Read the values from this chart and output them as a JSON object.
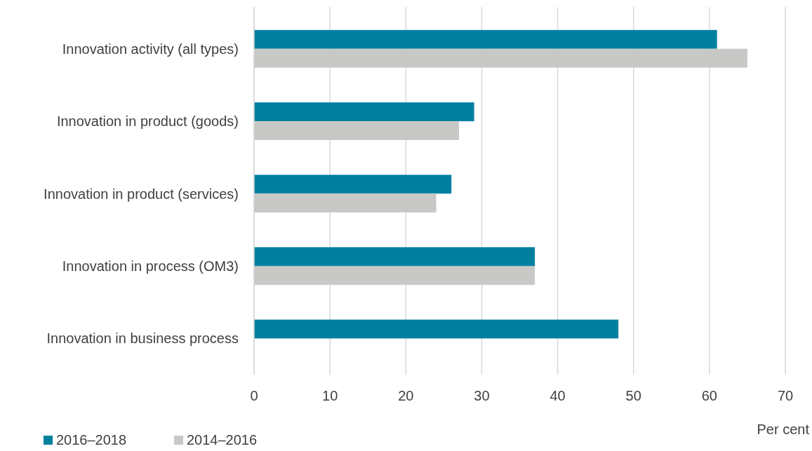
{
  "chart_data": {
    "type": "bar",
    "orientation": "horizontal",
    "categories": [
      "Innovation activity (all types)",
      "Innovation in product (goods)",
      "Innovation in product (services)",
      "Innovation in process (OM3)",
      "Innovation in business process"
    ],
    "series": [
      {
        "name": "2016–2018",
        "color": "#00809f",
        "values": [
          61,
          29,
          26,
          37,
          48
        ]
      },
      {
        "name": "2014–2016",
        "color": "#c8c9c6",
        "values": [
          65,
          27,
          24,
          37,
          null
        ]
      }
    ],
    "xlim": [
      0,
      70
    ],
    "xticks": [
      0,
      10,
      20,
      30,
      40,
      50,
      60,
      70
    ],
    "xlabel": "Per cent",
    "grid": "x",
    "legend": "bottom left"
  }
}
